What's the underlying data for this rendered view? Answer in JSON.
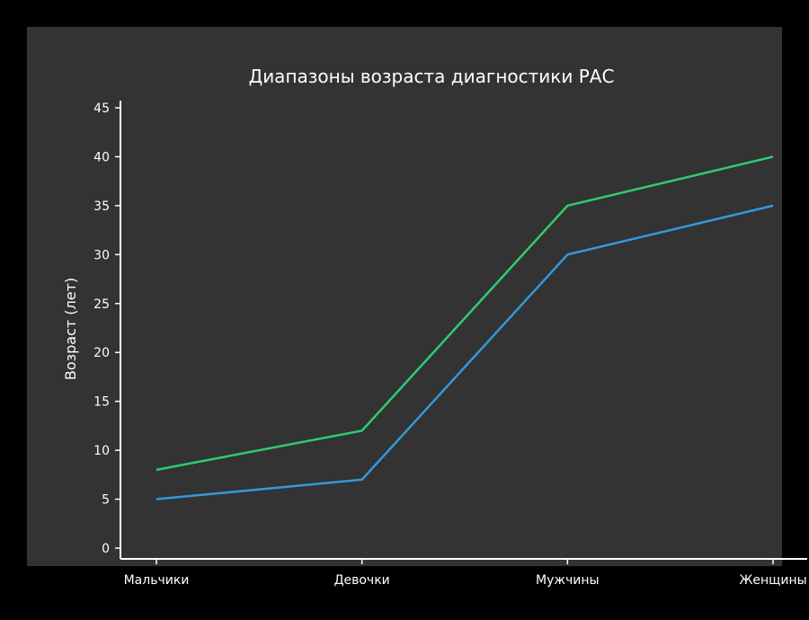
{
  "chart_data": {
    "type": "line",
    "title": "Диапазоны возраста диагностики РАС",
    "xlabel": "",
    "ylabel": "Возраст (лет)",
    "categories": [
      "Мальчики",
      "Девочки",
      "Мужчины",
      "Женщины"
    ],
    "ylim": [
      0,
      45
    ],
    "yticks": [
      0,
      5,
      10,
      15,
      20,
      25,
      30,
      35,
      40,
      45
    ],
    "grid": false,
    "series": [
      {
        "values": [
          5,
          7,
          30,
          35
        ],
        "color": "#3498db"
      },
      {
        "values": [
          8,
          12,
          35,
          40
        ],
        "color": "#2ecc71"
      }
    ]
  }
}
